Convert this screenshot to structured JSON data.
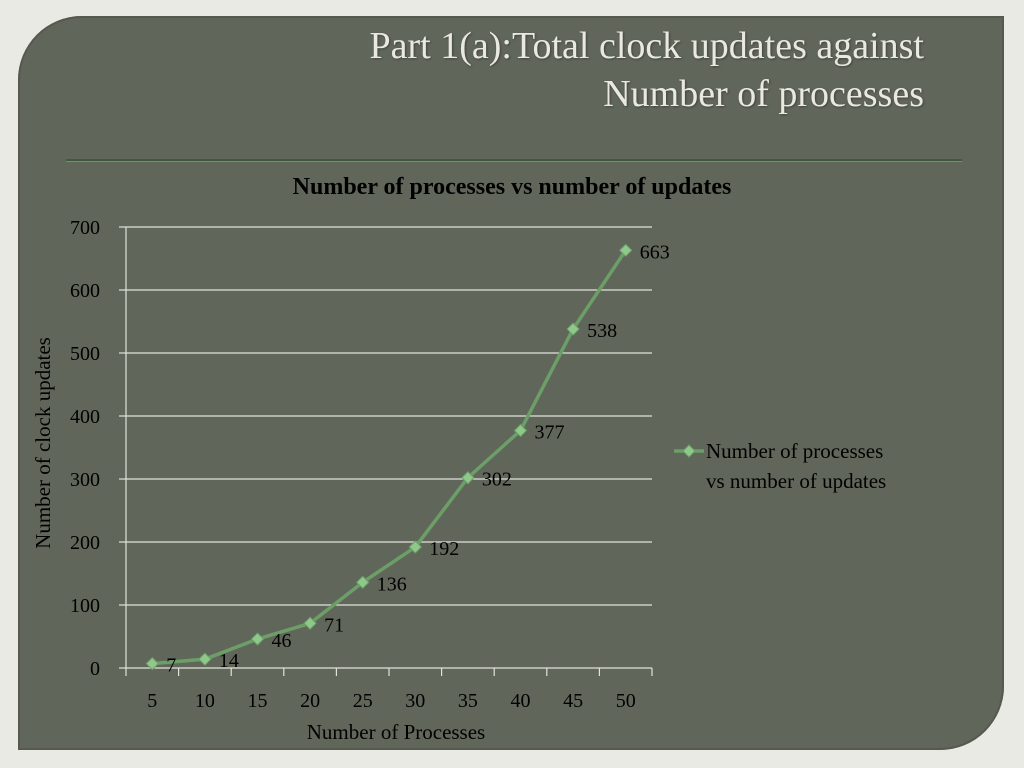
{
  "slide": {
    "title_line1": "Part 1(a):Total clock updates against",
    "title_line2": "Number of processes"
  },
  "colors": {
    "slide_background": "#61665a",
    "series_line": "#6c9e68",
    "series_marker": "#8ec88a",
    "gridline": "#dfe3da"
  },
  "chart_data": {
    "type": "line",
    "title": "Number of processes vs number of updates",
    "xlabel": "Number of Processes",
    "ylabel": "Number of clock updates",
    "categories": [
      "5",
      "10",
      "15",
      "20",
      "25",
      "30",
      "35",
      "40",
      "45",
      "50"
    ],
    "series": [
      {
        "name": "Number of processes vs number of updates",
        "legend_lines": [
          "Number of processes",
          "vs number of updates"
        ],
        "values": [
          7,
          14,
          46,
          71,
          136,
          192,
          302,
          377,
          538,
          663
        ],
        "marker": "diamond"
      }
    ],
    "ylim": [
      0,
      700
    ],
    "yticks": [
      0,
      100,
      200,
      300,
      400,
      500,
      600,
      700
    ],
    "grid": true,
    "legend_position": "right",
    "data_labels": true
  }
}
